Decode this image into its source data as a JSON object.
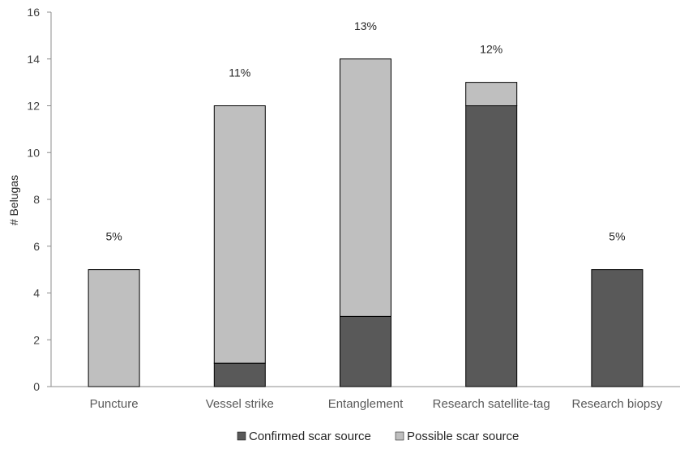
{
  "chart_data": {
    "type": "bar",
    "stacked": true,
    "categories": [
      "Puncture",
      "Vessel strike",
      "Entanglement",
      "Research satellite-tag",
      "Research biopsy"
    ],
    "series": [
      {
        "name": "Confirmed scar source",
        "values": [
          0,
          1,
          3,
          12,
          5
        ],
        "color": "#595959"
      },
      {
        "name": "Possible scar source",
        "values": [
          5,
          11,
          11,
          1,
          0
        ],
        "color": "#bfbfbf"
      }
    ],
    "annotations": [
      "5%",
      "11%",
      "13%",
      "12%",
      "5%"
    ],
    "xlabel": "",
    "ylabel": "# Belugas",
    "ylim": [
      0,
      16
    ],
    "yticks": [
      0,
      2,
      4,
      6,
      8,
      10,
      12,
      14,
      16
    ],
    "grid": false,
    "legend_position": "bottom"
  }
}
